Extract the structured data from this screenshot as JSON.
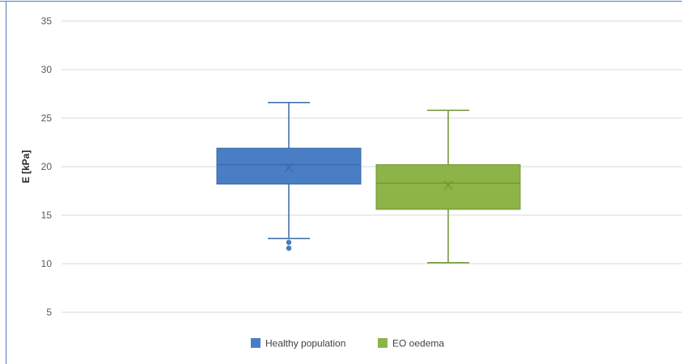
{
  "chart_data": {
    "type": "box",
    "title": "",
    "xlabel": "",
    "ylabel": "E [kPa]",
    "ylim": [
      5,
      35
    ],
    "yticks": [
      5,
      10,
      15,
      20,
      25,
      30,
      35
    ],
    "grid": true,
    "legend_position": "bottom",
    "series": [
      {
        "name": "Healthy population",
        "color": "#4a7ec4",
        "whisker_low": 12.6,
        "q1": 18.2,
        "median": 20.2,
        "q3": 21.9,
        "whisker_high": 26.6,
        "mean": 19.9,
        "outliers": [
          12.2,
          11.6
        ]
      },
      {
        "name": "EO oedema",
        "color": "#8db446",
        "whisker_low": 10.1,
        "q1": 15.6,
        "median": 18.3,
        "q3": 20.2,
        "whisker_high": 25.8,
        "mean": 18.1,
        "outliers": []
      }
    ]
  }
}
